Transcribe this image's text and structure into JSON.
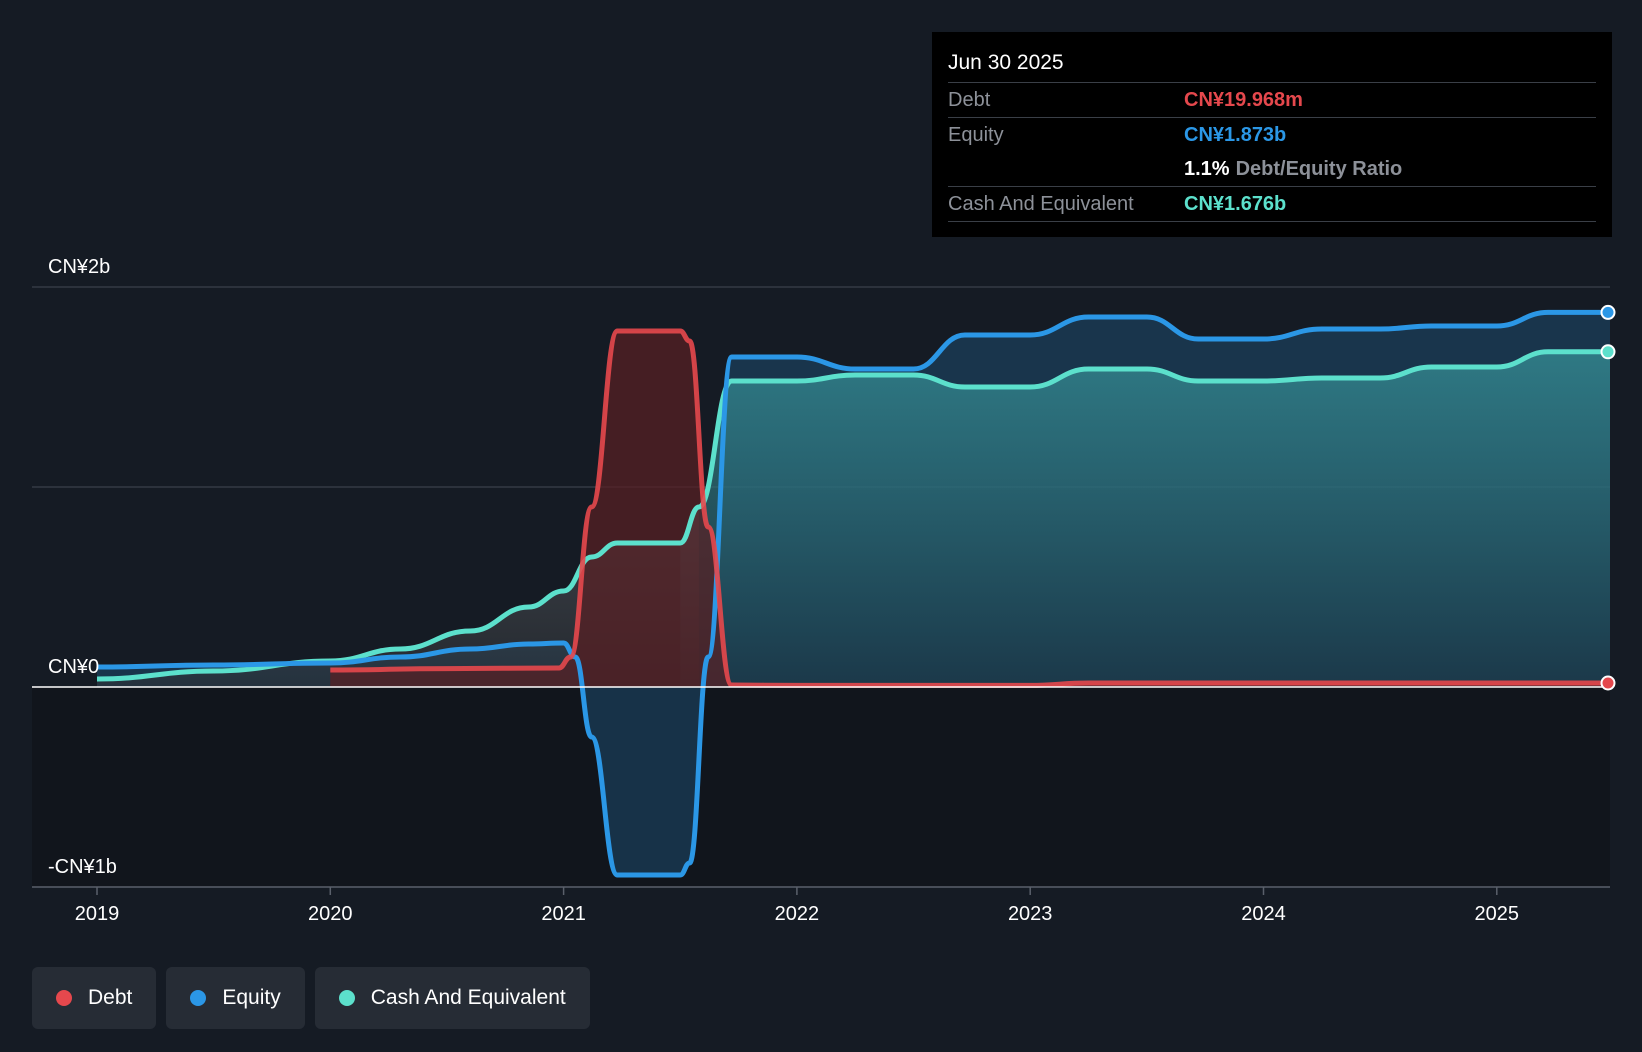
{
  "chart_data": {
    "type": "area",
    "title": "",
    "xlabel": "",
    "ylabel": "",
    "ylim": [
      -1000,
      2000
    ],
    "y_ticks": [
      {
        "value": 2000,
        "label": "CN¥2b"
      },
      {
        "value": 0,
        "label": "CN¥0"
      },
      {
        "value": -1000,
        "label": "-CN¥1b"
      }
    ],
    "x_ticks": [
      {
        "value": 2019,
        "label": "2019"
      },
      {
        "value": 2020,
        "label": "2020"
      },
      {
        "value": 2021,
        "label": "2021"
      },
      {
        "value": 2022,
        "label": "2022"
      },
      {
        "value": 2023,
        "label": "2023"
      },
      {
        "value": 2024,
        "label": "2024"
      },
      {
        "value": 2025,
        "label": "2025"
      }
    ],
    "xlim": [
      2018.73,
      2025.49
    ],
    "units": "CN¥ millions",
    "series": [
      {
        "name": "Debt",
        "color": "#e5484d",
        "points": [
          [
            2020.0,
            85
          ],
          [
            2020.5,
            92
          ],
          [
            2020.98,
            95
          ],
          [
            2021.03,
            150
          ],
          [
            2021.12,
            900
          ],
          [
            2021.23,
            1780
          ],
          [
            2021.27,
            1780
          ],
          [
            2021.5,
            1780
          ],
          [
            2021.54,
            1730
          ],
          [
            2021.62,
            800
          ],
          [
            2021.72,
            10
          ],
          [
            2022.0,
            8
          ],
          [
            2022.5,
            8
          ],
          [
            2023.0,
            8
          ],
          [
            2023.25,
            20
          ],
          [
            2023.5,
            20
          ],
          [
            2024.0,
            20
          ],
          [
            2024.5,
            20
          ],
          [
            2025.0,
            20
          ],
          [
            2025.49,
            20
          ]
        ]
      },
      {
        "name": "Equity",
        "color": "#2b97e6",
        "points": [
          [
            2019.0,
            100
          ],
          [
            2019.5,
            110
          ],
          [
            2020.0,
            120
          ],
          [
            2020.3,
            150
          ],
          [
            2020.6,
            190
          ],
          [
            2020.85,
            215
          ],
          [
            2021.0,
            220
          ],
          [
            2021.05,
            150
          ],
          [
            2021.12,
            -250
          ],
          [
            2021.23,
            -940
          ],
          [
            2021.27,
            -940
          ],
          [
            2021.5,
            -940
          ],
          [
            2021.54,
            -880
          ],
          [
            2021.62,
            150
          ],
          [
            2021.72,
            1650
          ],
          [
            2022.0,
            1650
          ],
          [
            2022.25,
            1590
          ],
          [
            2022.5,
            1590
          ],
          [
            2022.72,
            1760
          ],
          [
            2023.0,
            1760
          ],
          [
            2023.25,
            1850
          ],
          [
            2023.5,
            1850
          ],
          [
            2023.72,
            1740
          ],
          [
            2024.0,
            1740
          ],
          [
            2024.25,
            1790
          ],
          [
            2024.5,
            1790
          ],
          [
            2024.72,
            1805
          ],
          [
            2025.0,
            1805
          ],
          [
            2025.22,
            1873
          ],
          [
            2025.49,
            1873
          ]
        ]
      },
      {
        "name": "Cash And Equivalent",
        "color": "#5ce0cc",
        "points": [
          [
            2019.0,
            40
          ],
          [
            2019.5,
            80
          ],
          [
            2020.0,
            130
          ],
          [
            2020.3,
            190
          ],
          [
            2020.6,
            280
          ],
          [
            2020.85,
            400
          ],
          [
            2021.0,
            480
          ],
          [
            2021.12,
            650
          ],
          [
            2021.23,
            720
          ],
          [
            2021.5,
            720
          ],
          [
            2021.58,
            900
          ],
          [
            2021.72,
            1530
          ],
          [
            2022.0,
            1530
          ],
          [
            2022.25,
            1560
          ],
          [
            2022.5,
            1560
          ],
          [
            2022.72,
            1500
          ],
          [
            2023.0,
            1500
          ],
          [
            2023.25,
            1590
          ],
          [
            2023.5,
            1590
          ],
          [
            2023.72,
            1530
          ],
          [
            2024.0,
            1530
          ],
          [
            2024.25,
            1545
          ],
          [
            2024.5,
            1545
          ],
          [
            2024.72,
            1600
          ],
          [
            2025.0,
            1600
          ],
          [
            2025.22,
            1676
          ],
          [
            2025.49,
            1676
          ]
        ]
      }
    ]
  },
  "tooltip": {
    "date": "Jun 30 2025",
    "debt_label": "Debt",
    "debt_value": "CN¥19.968m",
    "equity_label": "Equity",
    "equity_value": "CN¥1.873b",
    "ratio_value": "1.1%",
    "ratio_label": "Debt/Equity Ratio",
    "cash_label": "Cash And Equivalent",
    "cash_value": "CN¥1.676b"
  },
  "legend": {
    "items": [
      {
        "label": "Debt",
        "color": "#e5484d"
      },
      {
        "label": "Equity",
        "color": "#2b97e6"
      },
      {
        "label": "Cash And Equivalent",
        "color": "#5ce0cc"
      }
    ]
  },
  "colors": {
    "background": "#151b24",
    "debt": "#e5484d",
    "equity": "#2b97e6",
    "cash": "#5ce0cc",
    "tooltip_label": "#8d9199"
  }
}
